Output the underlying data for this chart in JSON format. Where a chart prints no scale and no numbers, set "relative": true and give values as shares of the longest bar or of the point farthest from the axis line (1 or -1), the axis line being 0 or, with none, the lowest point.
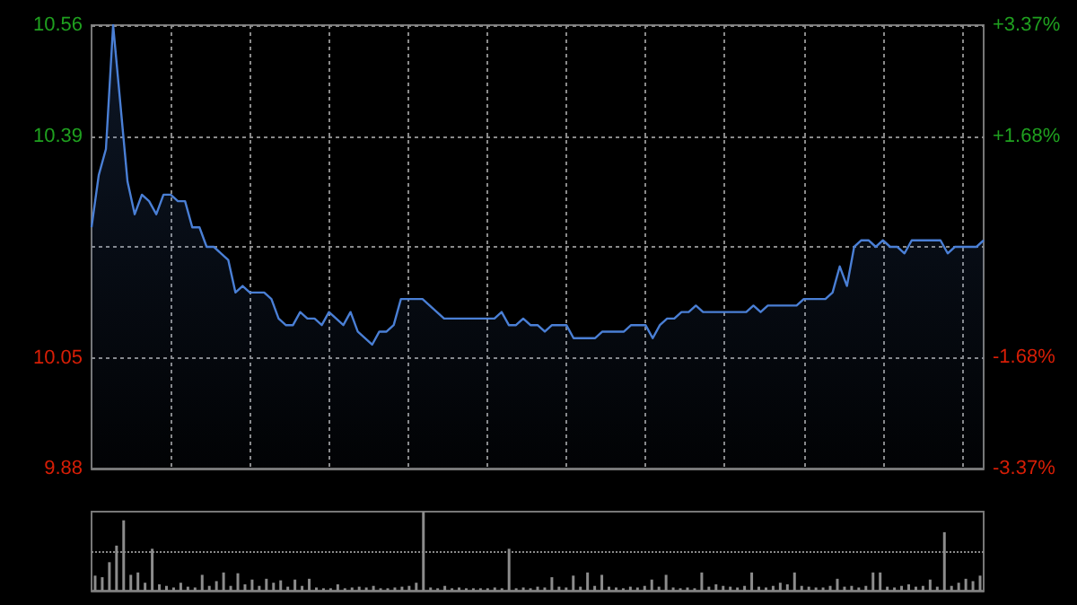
{
  "chart_data": [
    {
      "type": "area",
      "categories": [
        null,
        null,
        null,
        null,
        null,
        null,
        null,
        null,
        null,
        null,
        null,
        null,
        null,
        null,
        null,
        null,
        null,
        null,
        null,
        null,
        null,
        null,
        null,
        null,
        null,
        null,
        null,
        null,
        null,
        null,
        null,
        null,
        null,
        null,
        null,
        null,
        null,
        null,
        null,
        null,
        null,
        null,
        null,
        null,
        null,
        null,
        null,
        null,
        null,
        null,
        null,
        null,
        null,
        null,
        null,
        null,
        null,
        null,
        null,
        null,
        null,
        null,
        null,
        null,
        null,
        null,
        null,
        null,
        null,
        null,
        null,
        null,
        null,
        null,
        null,
        null,
        null,
        null,
        null,
        null,
        null,
        null,
        null,
        null,
        null,
        null,
        null,
        null,
        null,
        null,
        null,
        null,
        null,
        null,
        null,
        null,
        null,
        null,
        null,
        null,
        null,
        null,
        null,
        null,
        null,
        null,
        null,
        null,
        null,
        null,
        null,
        null,
        null,
        null,
        null,
        null,
        null,
        null,
        null,
        null,
        null,
        null,
        null,
        null,
        null
      ],
      "series": [
        {
          "color": "#4a7fd5",
          "values": [
            10.25,
            10.33,
            10.37,
            10.56,
            10.44,
            10.32,
            10.27,
            10.3,
            10.29,
            10.27,
            10.3,
            10.3,
            10.29,
            10.29,
            10.25,
            10.25,
            10.22,
            10.22,
            10.21,
            10.2,
            10.15,
            10.16,
            10.15,
            10.15,
            10.15,
            10.14,
            10.11,
            10.1,
            10.1,
            10.12,
            10.11,
            10.11,
            10.1,
            10.12,
            10.11,
            10.1,
            10.12,
            10.09,
            10.08,
            10.07,
            10.09,
            10.09,
            10.1,
            10.14,
            10.14,
            10.14,
            10.14,
            10.13,
            10.12,
            10.11,
            10.11,
            10.11,
            10.11,
            10.11,
            10.11,
            10.11,
            10.11,
            10.12,
            10.1,
            10.1,
            10.11,
            10.1,
            10.1,
            10.09,
            10.1,
            10.1,
            10.1,
            10.08,
            10.08,
            10.08,
            10.08,
            10.09,
            10.09,
            10.09,
            10.09,
            10.1,
            10.1,
            10.1,
            10.08,
            10.1,
            10.11,
            10.11,
            10.12,
            10.12,
            10.13,
            10.12,
            10.12,
            10.12,
            10.12,
            10.12,
            10.12,
            10.12,
            10.13,
            10.12,
            10.13,
            10.13,
            10.13,
            10.13,
            10.13,
            10.14,
            10.14,
            10.14,
            10.14,
            10.15,
            10.19,
            10.16,
            10.22,
            10.23,
            10.23,
            10.22,
            10.23,
            10.22,
            10.22,
            10.21,
            10.23,
            10.23,
            10.23,
            10.23,
            10.23,
            10.21,
            10.22,
            10.22,
            10.22,
            10.22,
            10.23
          ]
        }
      ],
      "ylim": [
        9.88,
        10.56
      ],
      "yticks": [
        9.88,
        10.05,
        {
          "value": 10.22,
          "label": null
        },
        10.39,
        10.56
      ],
      "y2lim": [
        -3.37,
        3.37
      ],
      "y2ticks": [
        {
          "value": -3.37,
          "label": "-3.37%"
        },
        {
          "value": -1.68,
          "label": "-1.68%"
        },
        {
          "value": 0,
          "label": null
        },
        {
          "value": 1.68,
          "label": "+1.68%"
        },
        {
          "value": 3.37,
          "label": "+3.37%"
        }
      ],
      "grid": true,
      "marker": "none"
    },
    {
      "type": "bar",
      "relative": true,
      "categories": [
        null,
        null,
        null,
        null,
        null,
        null,
        null,
        null,
        null,
        null,
        null,
        null,
        null,
        null,
        null,
        null,
        null,
        null,
        null,
        null,
        null,
        null,
        null,
        null,
        null,
        null,
        null,
        null,
        null,
        null,
        null,
        null,
        null,
        null,
        null,
        null,
        null,
        null,
        null,
        null,
        null,
        null,
        null,
        null,
        null,
        null,
        null,
        null,
        null,
        null,
        null,
        null,
        null,
        null,
        null,
        null,
        null,
        null,
        null,
        null,
        null,
        null,
        null,
        null,
        null,
        null,
        null,
        null,
        null,
        null,
        null,
        null,
        null,
        null,
        null,
        null,
        null,
        null,
        null,
        null,
        null,
        null,
        null,
        null,
        null,
        null,
        null,
        null,
        null,
        null,
        null,
        null,
        null,
        null,
        null,
        null,
        null,
        null,
        null,
        null,
        null,
        null,
        null,
        null,
        null,
        null,
        null,
        null,
        null,
        null,
        null,
        null,
        null,
        null,
        null,
        null,
        null,
        null,
        null,
        null,
        null,
        null,
        null,
        null,
        null
      ],
      "series": [
        {
          "color": "#8c8c8c",
          "values": [
            0.19,
            0.17,
            0.36,
            0.57,
            0.89,
            0.2,
            0.23,
            0.1,
            0.53,
            0.08,
            0.06,
            0.04,
            0.1,
            0.05,
            0.04,
            0.2,
            0.06,
            0.12,
            0.23,
            0.06,
            0.22,
            0.08,
            0.14,
            0.06,
            0.15,
            0.1,
            0.13,
            0.05,
            0.14,
            0.06,
            0.15,
            0.04,
            0.03,
            0.03,
            0.08,
            0.03,
            0.04,
            0.05,
            0.04,
            0.06,
            0.03,
            0.03,
            0.04,
            0.05,
            0.06,
            0.1,
            1.0,
            0.04,
            0.03,
            0.06,
            0.03,
            0.04,
            0.03,
            0.03,
            0.03,
            0.03,
            0.04,
            0.03,
            0.53,
            0.03,
            0.04,
            0.03,
            0.05,
            0.04,
            0.17,
            0.05,
            0.04,
            0.19,
            0.05,
            0.23,
            0.06,
            0.2,
            0.05,
            0.04,
            0.03,
            0.05,
            0.04,
            0.06,
            0.14,
            0.05,
            0.2,
            0.04,
            0.03,
            0.04,
            0.03,
            0.23,
            0.05,
            0.08,
            0.06,
            0.05,
            0.04,
            0.06,
            0.23,
            0.05,
            0.04,
            0.06,
            0.1,
            0.08,
            0.23,
            0.06,
            0.05,
            0.04,
            0.04,
            0.06,
            0.15,
            0.05,
            0.06,
            0.04,
            0.06,
            0.23,
            0.23,
            0.05,
            0.04,
            0.06,
            0.08,
            0.05,
            0.06,
            0.14,
            0.05,
            0.74,
            0.06,
            0.1,
            0.15,
            0.12,
            0.19
          ]
        }
      ],
      "ref_lines": [
        {
          "axis": "y",
          "value": 0.5,
          "color": "#8a8a8a",
          "line_style": "dotted"
        }
      ]
    }
  ]
}
